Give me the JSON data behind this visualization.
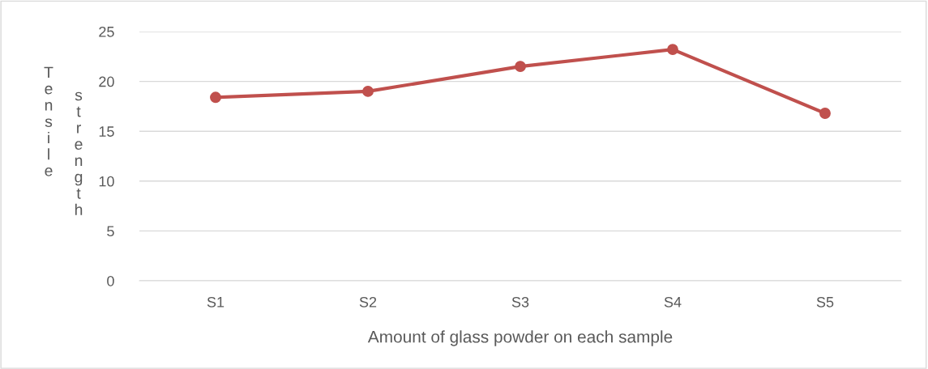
{
  "chart_data": {
    "type": "line",
    "xlabel": "Amount of glass powder on each sample",
    "ylabel": "Tensile strength",
    "categories": [
      "S1",
      "S2",
      "S3",
      "S4",
      "S5"
    ],
    "series": [
      {
        "color": "#c0504d",
        "values": [
          18.4,
          19.0,
          21.5,
          23.2,
          16.8
        ]
      }
    ],
    "ylim": [
      0,
      25
    ],
    "yticks": [
      0,
      5,
      10,
      15,
      20,
      25
    ],
    "grid": "y",
    "marker": "circle",
    "line_style": "solid",
    "legend": false
  }
}
